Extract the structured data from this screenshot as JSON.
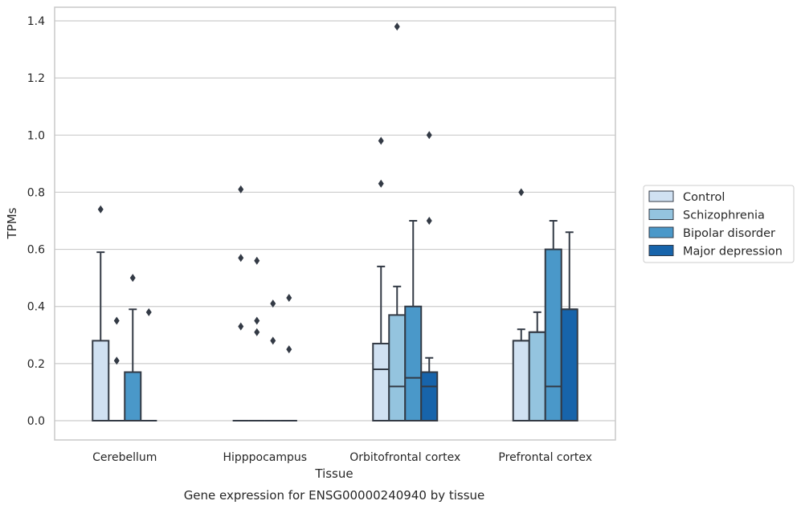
{
  "caption": "Gene expression for ENSG00000240940 by tissue",
  "colors": {
    "Control": "#d0e1f2",
    "Schizophrenia": "#94c4df",
    "Bipolar disorder": "#4a98c9",
    "Major depression": "#1764ab",
    "edge": "#333a45",
    "grid": "#cccccc",
    "frame": "#c8c8c8"
  },
  "chart_data": {
    "type": "box",
    "title": "",
    "xlabel": "Tissue",
    "ylabel": "TPMs",
    "ylim": [
      -0.07,
      1.45
    ],
    "yticks": [
      0.0,
      0.2,
      0.4,
      0.6,
      0.8,
      1.0,
      1.2,
      1.4
    ],
    "ytick_labels": [
      "0.0",
      "0.2",
      "0.4",
      "0.6",
      "0.8",
      "1.0",
      "1.2",
      "1.4"
    ],
    "categories": [
      "Cerebellum",
      "Hipppocampus",
      "Orbitofrontal cortex",
      "Prefrontal cortex"
    ],
    "grid": "horizontal",
    "legend_position": "right, outside plot",
    "series": [
      {
        "name": "Control",
        "boxes": [
          {
            "q1": 0.0,
            "median": 0.0,
            "q3": 0.28,
            "whisker_low": 0.0,
            "whisker_high": 0.59,
            "outliers": [
              0.74
            ]
          },
          {
            "q1": 0.0,
            "median": 0.0,
            "q3": 0.0,
            "whisker_low": 0.0,
            "whisker_high": 0.0,
            "outliers": [
              0.81,
              0.57,
              0.33
            ]
          },
          {
            "q1": 0.0,
            "median": 0.18,
            "q3": 0.27,
            "whisker_low": 0.0,
            "whisker_high": 0.54,
            "outliers": [
              0.98,
              0.83
            ]
          },
          {
            "q1": 0.0,
            "median": 0.28,
            "q3": 0.28,
            "whisker_low": 0.0,
            "whisker_high": 0.32,
            "outliers": [
              0.8
            ]
          }
        ]
      },
      {
        "name": "Schizophrenia",
        "boxes": [
          {
            "q1": 0.0,
            "median": 0.0,
            "q3": 0.0,
            "whisker_low": 0.0,
            "whisker_high": 0.0,
            "outliers": [
              0.35,
              0.21
            ]
          },
          {
            "q1": 0.0,
            "median": 0.0,
            "q3": 0.0,
            "whisker_low": 0.0,
            "whisker_high": 0.0,
            "outliers": [
              0.56,
              0.35,
              0.31
            ]
          },
          {
            "q1": 0.0,
            "median": 0.12,
            "q3": 0.37,
            "whisker_low": 0.0,
            "whisker_high": 0.47,
            "outliers": [
              1.38
            ]
          },
          {
            "q1": 0.0,
            "median": 0.31,
            "q3": 0.31,
            "whisker_low": 0.0,
            "whisker_high": 0.38,
            "outliers": []
          }
        ]
      },
      {
        "name": "Bipolar disorder",
        "boxes": [
          {
            "q1": 0.0,
            "median": 0.0,
            "q3": 0.17,
            "whisker_low": 0.0,
            "whisker_high": 0.39,
            "outliers": [
              0.5
            ]
          },
          {
            "q1": 0.0,
            "median": 0.0,
            "q3": 0.0,
            "whisker_low": 0.0,
            "whisker_high": 0.0,
            "outliers": [
              0.41,
              0.28
            ]
          },
          {
            "q1": 0.0,
            "median": 0.15,
            "q3": 0.4,
            "whisker_low": 0.0,
            "whisker_high": 0.7,
            "outliers": []
          },
          {
            "q1": 0.0,
            "median": 0.12,
            "q3": 0.6,
            "whisker_low": 0.0,
            "whisker_high": 0.7,
            "outliers": []
          }
        ]
      },
      {
        "name": "Major depression",
        "boxes": [
          {
            "q1": 0.0,
            "median": 0.0,
            "q3": 0.0,
            "whisker_low": 0.0,
            "whisker_high": 0.0,
            "outliers": [
              0.38
            ]
          },
          {
            "q1": 0.0,
            "median": 0.0,
            "q3": 0.0,
            "whisker_low": 0.0,
            "whisker_high": 0.0,
            "outliers": [
              0.43,
              0.25
            ]
          },
          {
            "q1": 0.0,
            "median": 0.12,
            "q3": 0.17,
            "whisker_low": 0.0,
            "whisker_high": 0.22,
            "outliers": [
              1.0,
              0.7
            ]
          },
          {
            "q1": 0.0,
            "median": 0.39,
            "q3": 0.39,
            "whisker_low": 0.0,
            "whisker_high": 0.66,
            "outliers": []
          }
        ]
      }
    ]
  }
}
